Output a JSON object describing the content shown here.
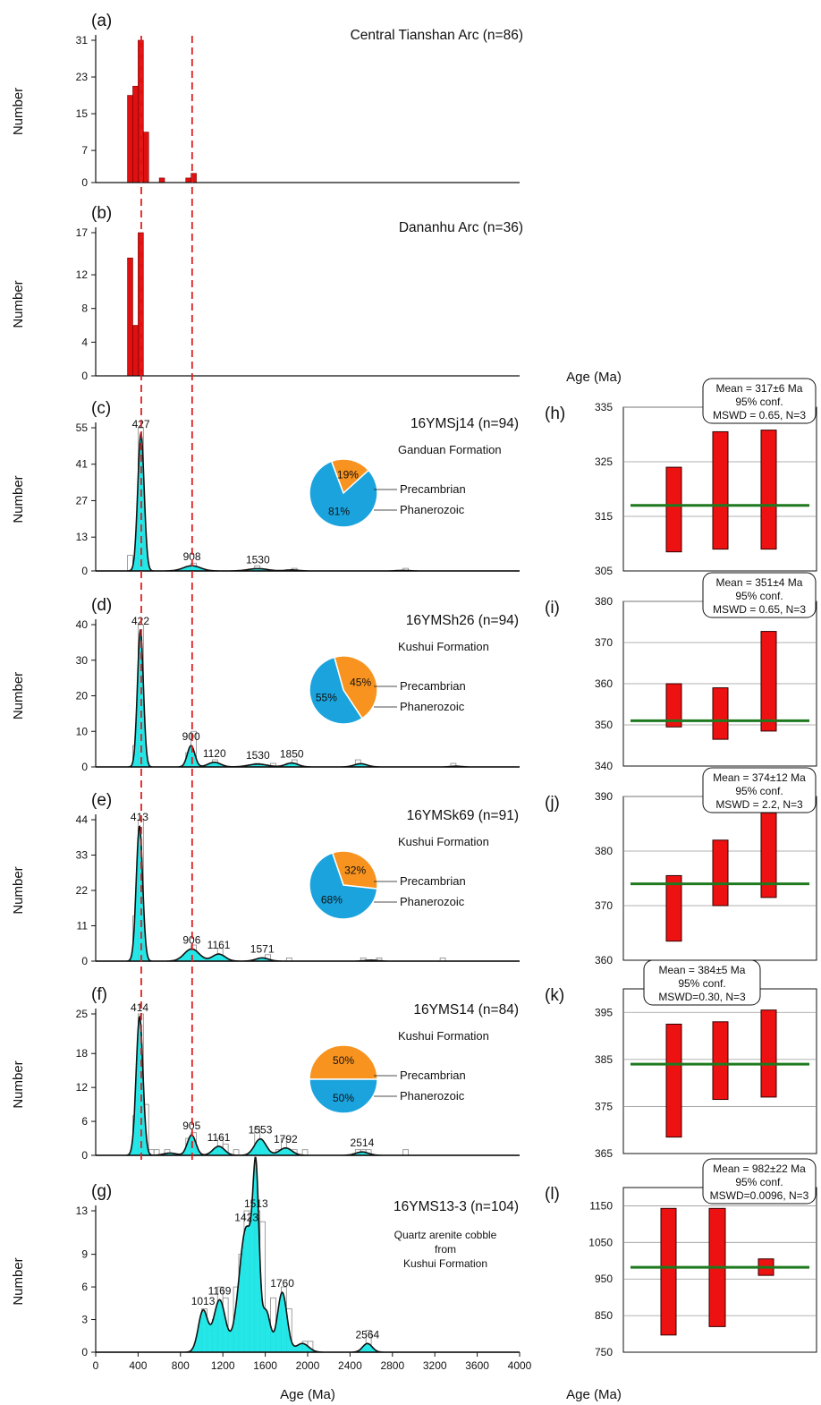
{
  "figure": {
    "left_xlabel": "Age (Ma)",
    "right_xlabel_bottom": "Age (Ma)",
    "right_ylabel_top": "Age (Ma)",
    "ylabel": "Number",
    "colors": {
      "histogram_bar": "#e01010",
      "kde_fill": "#1ae6e6",
      "pie_precambrian": "#f7931e",
      "pie_phanerozoic": "#1aa3dd",
      "reference_line": "#e02020",
      "mean_line": "#1f7a1f",
      "age_bar": "#ee1111"
    },
    "reference_ages": [
      430,
      910
    ],
    "x_ticks": [
      0,
      400,
      800,
      1200,
      1600,
      2000,
      2400,
      2800,
      3200,
      3600,
      4000
    ],
    "x_tick_labels": [
      "0",
      "400",
      "800",
      "1200",
      "1600",
      "2000",
      "2400",
      "2800",
      "3200",
      "3600",
      "4000"
    ]
  },
  "chart_data": [
    {
      "panel": "(a)",
      "type": "bar",
      "title": "Central Tianshan Arc (n=86)",
      "ylabel": "Number",
      "xlim": [
        0,
        4000
      ],
      "ylim": [
        0,
        31
      ],
      "yticks": [
        0,
        7,
        15,
        23,
        31
      ],
      "bin_width": 50,
      "x": [
        300,
        350,
        400,
        450,
        600,
        850,
        900
      ],
      "values": [
        19,
        21,
        31,
        11,
        1,
        1,
        2
      ]
    },
    {
      "panel": "(b)",
      "type": "bar",
      "title": "Dananhu Arc (n=36)",
      "ylabel": "Number",
      "xlim": [
        0,
        4000
      ],
      "ylim": [
        0,
        17
      ],
      "yticks": [
        0,
        4,
        8,
        12,
        17
      ],
      "bin_width": 50,
      "x": [
        300,
        350,
        400
      ],
      "values": [
        14,
        6,
        17
      ]
    },
    {
      "panel": "(c)",
      "type": "area",
      "title": "16YMSj14 (n=94)",
      "ylabel": "Number",
      "xlim": [
        0,
        4000
      ],
      "ylim": [
        0,
        55
      ],
      "yticks": [
        0,
        13,
        27,
        41,
        55
      ],
      "peaks": [
        {
          "age": 427,
          "height": 53,
          "width": 30
        },
        {
          "age": 908,
          "height": 2,
          "width": 80
        },
        {
          "age": 1530,
          "height": 0.9,
          "width": 90
        },
        {
          "age": 1850,
          "height": 0.4,
          "width": 60
        },
        {
          "age": 2900,
          "height": 0.2,
          "width": 60
        }
      ],
      "peak_labels": [
        "427",
        "908",
        "1530"
      ],
      "hist_x": [
        300,
        400,
        850,
        900,
        1500,
        1850,
        2900
      ],
      "hist_values": [
        6,
        55,
        1,
        3,
        2,
        1,
        1
      ],
      "bin_width": 50,
      "pie": {
        "formation": "Ganduan Formation",
        "precambrian_label": "Precambrian",
        "phanerozoic_label": "Phanerozoic",
        "precambrian_pct": "19%",
        "phanerozoic_pct": "81%",
        "precambrian": 19,
        "phanerozoic": 81
      }
    },
    {
      "panel": "(d)",
      "type": "area",
      "title": "16YMSh26 (n=94)",
      "ylabel": "Number",
      "xlim": [
        0,
        4000
      ],
      "ylim": [
        0,
        40
      ],
      "yticks": [
        0,
        10,
        20,
        30,
        40
      ],
      "peaks": [
        {
          "age": 422,
          "height": 38.5,
          "width": 28
        },
        {
          "age": 900,
          "height": 6,
          "width": 35
        },
        {
          "age": 1120,
          "height": 1.3,
          "width": 60
        },
        {
          "age": 1530,
          "height": 0.8,
          "width": 90
        },
        {
          "age": 1850,
          "height": 1.1,
          "width": 60
        },
        {
          "age": 2500,
          "height": 0.9,
          "width": 60
        },
        {
          "age": 3400,
          "height": 0.2,
          "width": 50
        }
      ],
      "peak_labels": [
        "422",
        "900",
        "1120",
        "1530",
        "1850"
      ],
      "hist_x": [
        350,
        400,
        850,
        900,
        1100,
        1500,
        1650,
        1800,
        1850,
        2450,
        3350
      ],
      "hist_values": [
        6,
        40,
        4,
        10,
        2,
        1,
        1,
        1,
        2,
        2,
        1
      ],
      "bin_width": 50,
      "pie": {
        "formation": "Kushui Formation",
        "precambrian_label": "Precambrian",
        "phanerozoic_label": "Phanerozoic",
        "precambrian_pct": "45%",
        "phanerozoic_pct": "55%",
        "precambrian": 45,
        "phanerozoic": 55
      }
    },
    {
      "panel": "(e)",
      "type": "area",
      "title": "16YMSk69 (n=91)",
      "ylabel": "Number",
      "xlim": [
        0,
        4000
      ],
      "ylim": [
        0,
        44
      ],
      "yticks": [
        0,
        11,
        22,
        33,
        44
      ],
      "peaks": [
        {
          "age": 413,
          "height": 42,
          "width": 30
        },
        {
          "age": 906,
          "height": 3.8,
          "width": 70
        },
        {
          "age": 1161,
          "height": 2.2,
          "width": 60
        },
        {
          "age": 1571,
          "height": 1,
          "width": 60
        },
        {
          "age": 2600,
          "height": 0.3,
          "width": 60
        }
      ],
      "peak_labels": [
        "413",
        "906",
        "1161",
        "1571"
      ],
      "hist_x": [
        350,
        400,
        900,
        1150,
        1600,
        1800,
        2500,
        2650,
        3250
      ],
      "hist_values": [
        14,
        44,
        5,
        4,
        2,
        1,
        1,
        1,
        1
      ],
      "bin_width": 50,
      "pie": {
        "formation": "Kushui Formation",
        "precambrian_label": "Precambrian",
        "phanerozoic_label": "Phanerozoic",
        "precambrian_pct": "32%",
        "phanerozoic_pct": "68%",
        "precambrian": 32,
        "phanerozoic": 68
      }
    },
    {
      "panel": "(f)",
      "type": "area",
      "title": "16YMS14 (n=84)",
      "ylabel": "Number",
      "xlim": [
        0,
        4000
      ],
      "ylim": [
        0,
        25
      ],
      "yticks": [
        0,
        6,
        12,
        18,
        25
      ],
      "peaks": [
        {
          "age": 414,
          "height": 24.5,
          "width": 32
        },
        {
          "age": 905,
          "height": 3.6,
          "width": 40
        },
        {
          "age": 1161,
          "height": 1.6,
          "width": 55
        },
        {
          "age": 1553,
          "height": 2.9,
          "width": 55
        },
        {
          "age": 1792,
          "height": 1.3,
          "width": 60
        },
        {
          "age": 2514,
          "height": 0.6,
          "width": 60
        },
        {
          "age": 700,
          "height": 0.4,
          "width": 60
        }
      ],
      "peak_labels": [
        "414",
        "905",
        "1161",
        "1553",
        "1792",
        "2514"
      ],
      "hist_x": [
        350,
        400,
        450,
        500,
        550,
        650,
        850,
        900,
        1150,
        1200,
        1300,
        1500,
        1700,
        1750,
        1850,
        1950,
        2450,
        2500,
        2550,
        2900
      ],
      "hist_values": [
        7,
        25,
        9,
        1,
        1,
        1,
        3,
        4,
        3,
        2,
        1,
        5,
        1,
        3,
        1,
        1,
        1,
        1,
        1,
        1
      ],
      "bin_width": 50,
      "pie": {
        "formation": "Kushui Formation",
        "precambrian_label": "Precambrian",
        "phanerozoic_label": "Phanerozoic",
        "precambrian_pct": "50%",
        "phanerozoic_pct": "50%",
        "precambrian": 50,
        "phanerozoic": 50
      }
    },
    {
      "panel": "(g)",
      "type": "area",
      "title": "16YMS13-3 (n=104)",
      "ylabel": "Number",
      "xlabel": "Age (Ma)",
      "xlim": [
        0,
        4000
      ],
      "ylim": [
        0,
        13
      ],
      "yticks": [
        0,
        3,
        6,
        9,
        13
      ],
      "peaks": [
        {
          "age": 1013,
          "height": 3.8,
          "width": 45
        },
        {
          "age": 1169,
          "height": 4.8,
          "width": 55
        },
        {
          "age": 1423,
          "height": 11.5,
          "width": 70
        },
        {
          "age": 1513,
          "height": 12.5,
          "width": 28
        },
        {
          "age": 1610,
          "height": 3.5,
          "width": 40
        },
        {
          "age": 1760,
          "height": 5.5,
          "width": 45
        },
        {
          "age": 1950,
          "height": 0.8,
          "width": 60
        },
        {
          "age": 2564,
          "height": 0.8,
          "width": 45
        }
      ],
      "peak_labels": [
        "1013",
        "1169",
        "1423",
        "1513",
        "1760",
        "2564"
      ],
      "hist_x": [
        1000,
        1050,
        1100,
        1150,
        1200,
        1250,
        1300,
        1350,
        1400,
        1450,
        1500,
        1550,
        1600,
        1650,
        1700,
        1750,
        1800,
        1950,
        2000,
        2550
      ],
      "hist_values": [
        4,
        2,
        3,
        6,
        5,
        2,
        6,
        9,
        13,
        8,
        13,
        12,
        3,
        5,
        3,
        6,
        4,
        1,
        1,
        2
      ],
      "bin_width": 50,
      "note": [
        "Quartz arenite cobble",
        "from",
        "Kushui Formation"
      ]
    },
    {
      "panel": "(h)",
      "type": "bar",
      "subtype": "weighted-mean",
      "ylim": [
        305,
        335
      ],
      "yticks": [
        305,
        315,
        325,
        335
      ],
      "bars": [
        {
          "low": 308.5,
          "high": 324
        },
        {
          "low": 309,
          "high": 330.5
        },
        {
          "low": 309,
          "high": 330.8
        }
      ],
      "mean": 317,
      "box": [
        "Mean = 317±6 Ma",
        "95% conf.",
        "MSWD = 0.65, N=3"
      ]
    },
    {
      "panel": "(i)",
      "type": "bar",
      "subtype": "weighted-mean",
      "ylim": [
        340,
        380
      ],
      "yticks": [
        340,
        350,
        360,
        370,
        380
      ],
      "bars": [
        {
          "low": 349.5,
          "high": 360
        },
        {
          "low": 346.5,
          "high": 359
        },
        {
          "low": 348.5,
          "high": 372.7
        }
      ],
      "mean": 351,
      "box": [
        "Mean = 351±4 Ma",
        "95% conf.",
        "MSWD = 0.65, N=3"
      ]
    },
    {
      "panel": "(j)",
      "type": "bar",
      "subtype": "weighted-mean",
      "ylim": [
        360,
        390
      ],
      "yticks": [
        360,
        370,
        380,
        390
      ],
      "bars": [
        {
          "low": 363.5,
          "high": 375.5
        },
        {
          "low": 370,
          "high": 382
        },
        {
          "low": 371.5,
          "high": 387
        }
      ],
      "mean": 374,
      "box": [
        "Mean = 374±12 Ma",
        "95% conf.",
        "MSWD = 2.2, N=3"
      ]
    },
    {
      "panel": "(k)",
      "type": "bar",
      "subtype": "weighted-mean",
      "ylim": [
        365,
        400
      ],
      "yticks": [
        365,
        375,
        385,
        395
      ],
      "bars": [
        {
          "low": 368.5,
          "high": 392.5
        },
        {
          "low": 376.5,
          "high": 393
        },
        {
          "low": 377,
          "high": 395.5
        }
      ],
      "mean": 384,
      "box": [
        "Mean = 384±5 Ma",
        "95% conf.",
        "MSWD=0.30, N=3"
      ]
    },
    {
      "panel": "(l)",
      "type": "bar",
      "subtype": "weighted-mean",
      "ylim": [
        750,
        1200
      ],
      "yticks": [
        750,
        850,
        950,
        1050,
        1150
      ],
      "bars": [
        {
          "low": 797,
          "high": 1143
        },
        {
          "low": 820,
          "high": 1143
        },
        {
          "low": 960,
          "high": 1005
        }
      ],
      "mean": 982,
      "box": [
        "Mean = 982±22 Ma",
        "95% conf.",
        "MSWD=0.0096, N=3"
      ]
    }
  ]
}
